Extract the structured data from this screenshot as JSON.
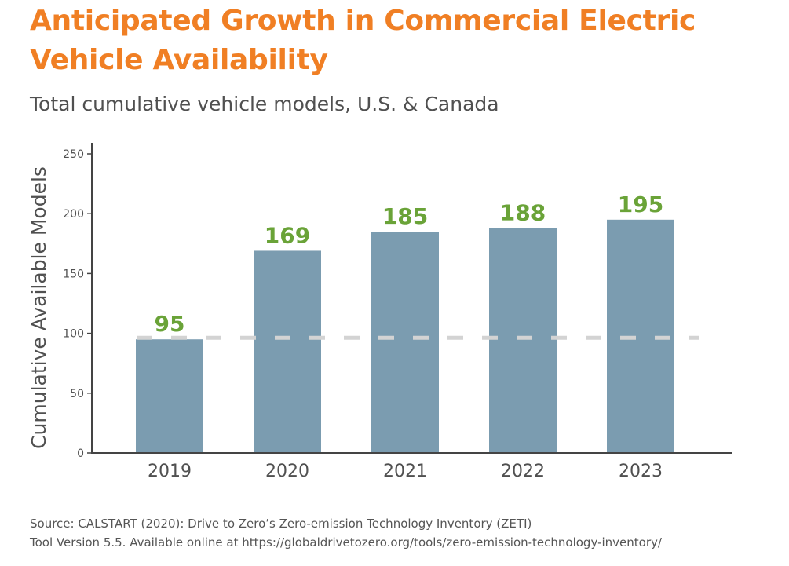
{
  "header": {
    "title": "Anticipated Growth in Commercial Electric Vehicle Availability",
    "subtitle": "Total cumulative vehicle models, U.S. & Canada"
  },
  "source": {
    "line1": "Source: CALSTART (2020): Drive to Zero’s Zero-emission Technology Inventory (ZETI)",
    "line2": "Tool Version 5.5. Available online at https://globaldrivetozero.org/tools/zero-emission-technology-inventory/"
  },
  "colors": {
    "title": "#f07f24",
    "bar": "#7b9cb0",
    "value_label": "#6aa338",
    "baseline": "#d3d3d3",
    "axis": "#444444",
    "text": "#505050"
  },
  "chart_data": {
    "type": "bar",
    "categories": [
      "2019",
      "2020",
      "2021",
      "2022",
      "2023"
    ],
    "values": [
      95,
      169,
      185,
      188,
      195
    ],
    "data_labels": [
      "95",
      "169",
      "185",
      "188",
      "195"
    ],
    "ylabel": "Cumulative Available Models",
    "xlabel": "",
    "ylim": [
      0,
      250
    ],
    "yticks": [
      0,
      50,
      100,
      150,
      200,
      250
    ],
    "reference_line": {
      "value": 95,
      "style": "dashed"
    },
    "grid": false,
    "legend": "none"
  }
}
